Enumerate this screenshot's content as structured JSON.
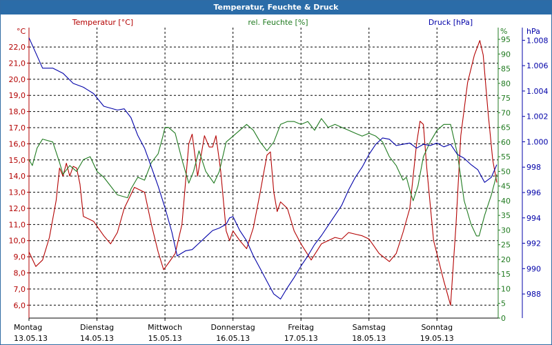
{
  "window": {
    "title": "Temperatur, Feuchte & Druck"
  },
  "chart_data": {
    "type": "line",
    "title": "Temperatur, Feuchte & Druck",
    "colors": {
      "temperature": "#b30000",
      "humidity": "#1f7a1f",
      "pressure": "#0000a8",
      "grid": "#000000"
    },
    "axes": {
      "temperature": {
        "label": "Temperatur [°C]",
        "unit": "°C",
        "range": [
          5.2,
          23.2
        ],
        "ticks": [
          "6,0",
          "7,0",
          "8,0",
          "9,0",
          "10,0",
          "11,0",
          "12,0",
          "13,0",
          "14,0",
          "15,0",
          "16,0",
          "17,0",
          "18,0",
          "19,0",
          "20,0",
          "21,0",
          "22,0"
        ]
      },
      "humidity": {
        "label": "rel. Feuchte [%]",
        "unit": "%",
        "range": [
          0,
          99
        ],
        "ticks": [
          "0",
          "5",
          "10",
          "15",
          "20",
          "25",
          "30",
          "35",
          "40",
          "45",
          "50",
          "55",
          "60",
          "65",
          "70",
          "75",
          "80",
          "85",
          "90",
          "95"
        ]
      },
      "pressure": {
        "label": "Druck [hPa]",
        "unit": "hPa",
        "range": [
          986.1,
          1009.0
        ],
        "ticks": [
          "988",
          "990",
          "992",
          "994",
          "996",
          "998",
          "1.000",
          "1.002",
          "1.004",
          "1.006",
          "1.008"
        ]
      }
    },
    "x_range": [
      0,
      6.9
    ],
    "days": [
      {
        "day": "Montag",
        "date": "13.05.13"
      },
      {
        "day": "Dienstag",
        "date": "14.05.13"
      },
      {
        "day": "Mittwoch",
        "date": "15.05.13"
      },
      {
        "day": "Donnerstag",
        "date": "16.05.13"
      },
      {
        "day": "Freitag",
        "date": "17.05.13"
      },
      {
        "day": "Samstag",
        "date": "18.05.13"
      },
      {
        "day": "Sonntag",
        "date": "19.05.13"
      }
    ],
    "series": [
      {
        "name": "Temperatur [°C]",
        "axis": "temperature",
        "points": [
          [
            0,
            9.3
          ],
          [
            0.1,
            8.4
          ],
          [
            0.2,
            8.8
          ],
          [
            0.3,
            10.2
          ],
          [
            0.4,
            12.5
          ],
          [
            0.45,
            14.5
          ],
          [
            0.5,
            14.0
          ],
          [
            0.55,
            14.8
          ],
          [
            0.6,
            14.0
          ],
          [
            0.65,
            14.6
          ],
          [
            0.7,
            14.5
          ],
          [
            0.75,
            13.5
          ],
          [
            0.8,
            11.5
          ],
          [
            0.95,
            11.2
          ],
          [
            1.1,
            10.3
          ],
          [
            1.2,
            9.8
          ],
          [
            1.3,
            10.5
          ],
          [
            1.4,
            12.0
          ],
          [
            1.55,
            13.3
          ],
          [
            1.7,
            13.0
          ],
          [
            1.8,
            11.0
          ],
          [
            1.9,
            9.3
          ],
          [
            1.98,
            8.2
          ],
          [
            2.05,
            8.6
          ],
          [
            2.15,
            9.2
          ],
          [
            2.25,
            11.0
          ],
          [
            2.35,
            16.0
          ],
          [
            2.4,
            16.6
          ],
          [
            2.48,
            14.0
          ],
          [
            2.58,
            16.5
          ],
          [
            2.65,
            15.8
          ],
          [
            2.7,
            15.8
          ],
          [
            2.75,
            16.5
          ],
          [
            2.82,
            14.3
          ],
          [
            2.9,
            10.6
          ],
          [
            2.95,
            10.0
          ],
          [
            3.0,
            10.6
          ],
          [
            3.1,
            10.0
          ],
          [
            3.2,
            9.5
          ],
          [
            3.3,
            10.8
          ],
          [
            3.4,
            13.0
          ],
          [
            3.5,
            15.3
          ],
          [
            3.55,
            15.5
          ],
          [
            3.6,
            13.0
          ],
          [
            3.65,
            11.8
          ],
          [
            3.7,
            12.4
          ],
          [
            3.8,
            12.0
          ],
          [
            3.9,
            10.6
          ],
          [
            4.0,
            9.8
          ],
          [
            4.15,
            8.8
          ],
          [
            4.3,
            9.8
          ],
          [
            4.4,
            10.0
          ],
          [
            4.5,
            10.2
          ],
          [
            4.6,
            10.1
          ],
          [
            4.7,
            10.5
          ],
          [
            4.8,
            10.4
          ],
          [
            4.9,
            10.3
          ],
          [
            5.0,
            10.1
          ],
          [
            5.15,
            9.2
          ],
          [
            5.3,
            8.7
          ],
          [
            5.4,
            9.2
          ],
          [
            5.5,
            10.5
          ],
          [
            5.6,
            12.0
          ],
          [
            5.7,
            16.0
          ],
          [
            5.75,
            17.4
          ],
          [
            5.8,
            17.2
          ],
          [
            5.85,
            14.5
          ],
          [
            5.95,
            10.0
          ],
          [
            6.1,
            7.5
          ],
          [
            6.2,
            6.0
          ],
          [
            6.28,
            11.0
          ],
          [
            6.35,
            16.5
          ],
          [
            6.45,
            19.8
          ],
          [
            6.55,
            21.5
          ],
          [
            6.63,
            22.4
          ],
          [
            6.68,
            21.5
          ],
          [
            6.75,
            18.0
          ],
          [
            6.82,
            15.0
          ],
          [
            6.88,
            13.6
          ]
        ]
      },
      {
        "name": "rel. Feuchte [%]",
        "axis": "humidity",
        "points": [
          [
            0,
            54
          ],
          [
            0.05,
            52
          ],
          [
            0.12,
            58
          ],
          [
            0.2,
            61
          ],
          [
            0.35,
            60
          ],
          [
            0.45,
            53
          ],
          [
            0.5,
            49
          ],
          [
            0.6,
            52
          ],
          [
            0.7,
            50
          ],
          [
            0.8,
            54
          ],
          [
            0.9,
            55
          ],
          [
            1.0,
            50
          ],
          [
            1.1,
            48
          ],
          [
            1.2,
            45
          ],
          [
            1.3,
            42
          ],
          [
            1.45,
            41
          ],
          [
            1.5,
            44
          ],
          [
            1.6,
            48
          ],
          [
            1.7,
            47
          ],
          [
            1.8,
            53
          ],
          [
            1.9,
            56
          ],
          [
            1.97,
            62
          ],
          [
            2.0,
            65
          ],
          [
            2.05,
            65
          ],
          [
            2.15,
            63
          ],
          [
            2.25,
            54
          ],
          [
            2.35,
            46
          ],
          [
            2.42,
            50
          ],
          [
            2.5,
            57
          ],
          [
            2.6,
            50
          ],
          [
            2.72,
            46
          ],
          [
            2.8,
            50
          ],
          [
            2.9,
            60
          ],
          [
            3.0,
            62
          ],
          [
            3.1,
            64
          ],
          [
            3.2,
            66
          ],
          [
            3.3,
            64
          ],
          [
            3.4,
            60
          ],
          [
            3.5,
            57
          ],
          [
            3.6,
            60
          ],
          [
            3.7,
            66
          ],
          [
            3.8,
            67
          ],
          [
            3.9,
            67
          ],
          [
            4.0,
            66
          ],
          [
            4.1,
            67
          ],
          [
            4.2,
            64
          ],
          [
            4.3,
            68
          ],
          [
            4.4,
            65
          ],
          [
            4.5,
            66
          ],
          [
            4.6,
            65
          ],
          [
            4.7,
            64
          ],
          [
            4.8,
            63
          ],
          [
            4.9,
            62
          ],
          [
            5.0,
            63
          ],
          [
            5.1,
            62
          ],
          [
            5.2,
            60
          ],
          [
            5.3,
            55
          ],
          [
            5.4,
            52
          ],
          [
            5.5,
            47
          ],
          [
            5.55,
            48
          ],
          [
            5.62,
            42
          ],
          [
            5.65,
            40
          ],
          [
            5.72,
            45
          ],
          [
            5.8,
            55
          ],
          [
            5.9,
            60
          ],
          [
            6.0,
            64
          ],
          [
            6.1,
            66
          ],
          [
            6.2,
            66
          ],
          [
            6.3,
            56
          ],
          [
            6.4,
            40
          ],
          [
            6.5,
            32
          ],
          [
            6.58,
            28
          ],
          [
            6.62,
            28
          ],
          [
            6.7,
            35
          ],
          [
            6.8,
            42
          ],
          [
            6.88,
            49
          ]
        ]
      },
      {
        "name": "Druck [hPa]",
        "axis": "pressure",
        "points": [
          [
            0,
            1008.2
          ],
          [
            0.1,
            1007.0
          ],
          [
            0.2,
            1005.8
          ],
          [
            0.35,
            1005.8
          ],
          [
            0.5,
            1005.4
          ],
          [
            0.65,
            1004.6
          ],
          [
            0.8,
            1004.3
          ],
          [
            0.95,
            1003.8
          ],
          [
            1.1,
            1002.8
          ],
          [
            1.3,
            1002.5
          ],
          [
            1.4,
            1002.6
          ],
          [
            1.5,
            1001.9
          ],
          [
            1.6,
            1000.5
          ],
          [
            1.7,
            999.5
          ],
          [
            1.8,
            998.0
          ],
          [
            1.9,
            996.5
          ],
          [
            2.0,
            994.8
          ],
          [
            2.1,
            992.9
          ],
          [
            2.18,
            991.0
          ],
          [
            2.3,
            991.4
          ],
          [
            2.4,
            991.5
          ],
          [
            2.5,
            992.0
          ],
          [
            2.6,
            992.5
          ],
          [
            2.7,
            993.0
          ],
          [
            2.8,
            993.2
          ],
          [
            2.9,
            993.5
          ],
          [
            2.95,
            994.0
          ],
          [
            3.0,
            994.1
          ],
          [
            3.1,
            993.0
          ],
          [
            3.2,
            992.2
          ],
          [
            3.3,
            991.0
          ],
          [
            3.4,
            990.0
          ],
          [
            3.5,
            989.0
          ],
          [
            3.6,
            988.0
          ],
          [
            3.7,
            987.6
          ],
          [
            3.8,
            988.5
          ],
          [
            3.9,
            989.3
          ],
          [
            4.0,
            990.2
          ],
          [
            4.1,
            991.0
          ],
          [
            4.2,
            991.9
          ],
          [
            4.3,
            992.6
          ],
          [
            4.4,
            993.4
          ],
          [
            4.5,
            994.2
          ],
          [
            4.6,
            995.0
          ],
          [
            4.7,
            996.2
          ],
          [
            4.8,
            997.2
          ],
          [
            4.9,
            998.0
          ],
          [
            5.0,
            999.0
          ],
          [
            5.1,
            999.8
          ],
          [
            5.2,
            1000.3
          ],
          [
            5.3,
            1000.2
          ],
          [
            5.4,
            999.7
          ],
          [
            5.5,
            999.8
          ],
          [
            5.6,
            999.9
          ],
          [
            5.7,
            999.5
          ],
          [
            5.8,
            999.8
          ],
          [
            5.9,
            999.7
          ],
          [
            6.0,
            999.9
          ],
          [
            6.1,
            999.6
          ],
          [
            6.2,
            999.8
          ],
          [
            6.3,
            999.0
          ],
          [
            6.4,
            998.7
          ],
          [
            6.5,
            998.2
          ],
          [
            6.6,
            997.8
          ],
          [
            6.7,
            996.8
          ],
          [
            6.8,
            997.2
          ],
          [
            6.88,
            998.2
          ]
        ]
      }
    ]
  }
}
